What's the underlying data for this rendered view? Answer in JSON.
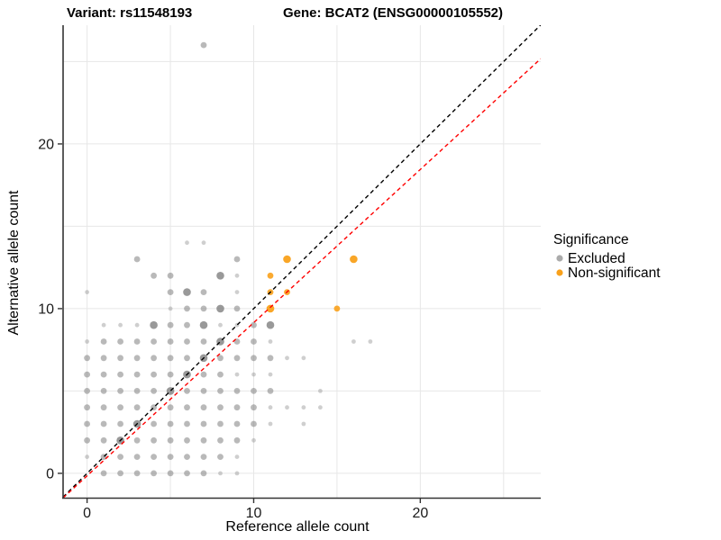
{
  "titles": {
    "variant": "Variant: rs11548193",
    "gene": "Gene: BCAT2 (ENSG00000105552)"
  },
  "axes": {
    "x": {
      "label": "Reference allele count",
      "ticks": [
        0,
        10,
        20
      ],
      "domain": [
        -1.44,
        27.23
      ],
      "gridlines": [
        0,
        5,
        10,
        15,
        20,
        25
      ]
    },
    "y": {
      "label": "Alternative allele count",
      "ticks": [
        0,
        10,
        20
      ],
      "domain": [
        -1.48,
        27.1
      ],
      "gridlines": [
        0,
        5,
        10,
        15,
        20,
        25
      ]
    }
  },
  "legend": {
    "title": "Significance",
    "items": [
      {
        "label": "Excluded",
        "color": "#ABABAB"
      },
      {
        "label": "Non-significant",
        "color": "#F9A11B"
      }
    ]
  },
  "colors": {
    "excluded_point": "#808080",
    "nonsignificant_point": "#F9A11B",
    "identity_line": "#000000",
    "fit_line": "#FF0000",
    "grid": "#E7E7E7",
    "axis_line": "#333333",
    "tick": "#333333"
  },
  "chart_data": {
    "type": "scatter",
    "xlabel": "Reference allele count",
    "ylabel": "Alternative allele count",
    "xlim": [
      -1.44,
      27.23
    ],
    "ylim": [
      -1.48,
      27.1
    ],
    "grid": "on",
    "legend_position": "right",
    "point_note": "points are [x, y, size_class]; size_class 0=small/faint 1=normal 2=large/dark",
    "series": [
      {
        "name": "Excluded",
        "color": "#808080",
        "points": [
          [
            1,
            0,
            1
          ],
          [
            2,
            0,
            1
          ],
          [
            3,
            0,
            1
          ],
          [
            4,
            0,
            1
          ],
          [
            5,
            0,
            1
          ],
          [
            6,
            0,
            1
          ],
          [
            7,
            0,
            1
          ],
          [
            8,
            0,
            0
          ],
          [
            9,
            0,
            0
          ],
          [
            0,
            1,
            0
          ],
          [
            1,
            1,
            1
          ],
          [
            2,
            1,
            1
          ],
          [
            3,
            1,
            1
          ],
          [
            4,
            1,
            1
          ],
          [
            5,
            1,
            1
          ],
          [
            6,
            1,
            1
          ],
          [
            7,
            1,
            1
          ],
          [
            8,
            1,
            1
          ],
          [
            9,
            1,
            0
          ],
          [
            0,
            2,
            1
          ],
          [
            1,
            2,
            1
          ],
          [
            2,
            2,
            2
          ],
          [
            3,
            2,
            1
          ],
          [
            4,
            2,
            1
          ],
          [
            5,
            2,
            1
          ],
          [
            6,
            2,
            1
          ],
          [
            7,
            2,
            1
          ],
          [
            8,
            2,
            1
          ],
          [
            9,
            2,
            1
          ],
          [
            10,
            2,
            0
          ],
          [
            0,
            3,
            1
          ],
          [
            1,
            3,
            1
          ],
          [
            2,
            3,
            1
          ],
          [
            3,
            3,
            2
          ],
          [
            4,
            3,
            1
          ],
          [
            5,
            3,
            1
          ],
          [
            6,
            3,
            1
          ],
          [
            7,
            3,
            1
          ],
          [
            8,
            3,
            1
          ],
          [
            9,
            3,
            1
          ],
          [
            10,
            3,
            1
          ],
          [
            11,
            3,
            0
          ],
          [
            13,
            3,
            0
          ],
          [
            0,
            4,
            1
          ],
          [
            1,
            4,
            1
          ],
          [
            2,
            4,
            1
          ],
          [
            3,
            4,
            1
          ],
          [
            4,
            4,
            1
          ],
          [
            5,
            4,
            1
          ],
          [
            6,
            4,
            1
          ],
          [
            7,
            4,
            1
          ],
          [
            8,
            4,
            1
          ],
          [
            9,
            4,
            1
          ],
          [
            10,
            4,
            1
          ],
          [
            11,
            4,
            0
          ],
          [
            12,
            4,
            0
          ],
          [
            13,
            4,
            0
          ],
          [
            14,
            4,
            0
          ],
          [
            0,
            5,
            1
          ],
          [
            1,
            5,
            1
          ],
          [
            2,
            5,
            1
          ],
          [
            3,
            5,
            1
          ],
          [
            4,
            5,
            1
          ],
          [
            5,
            5,
            2
          ],
          [
            6,
            5,
            1
          ],
          [
            7,
            5,
            1
          ],
          [
            8,
            5,
            1
          ],
          [
            9,
            5,
            1
          ],
          [
            10,
            5,
            1
          ],
          [
            11,
            5,
            1
          ],
          [
            14,
            5,
            0
          ],
          [
            0,
            6,
            1
          ],
          [
            1,
            6,
            1
          ],
          [
            2,
            6,
            1
          ],
          [
            3,
            6,
            1
          ],
          [
            4,
            6,
            1
          ],
          [
            5,
            6,
            1
          ],
          [
            6,
            6,
            2
          ],
          [
            7,
            6,
            1
          ],
          [
            8,
            6,
            1
          ],
          [
            9,
            6,
            0
          ],
          [
            10,
            6,
            0
          ],
          [
            11,
            6,
            0
          ],
          [
            0,
            7,
            1
          ],
          [
            1,
            7,
            1
          ],
          [
            2,
            7,
            1
          ],
          [
            3,
            7,
            1
          ],
          [
            4,
            7,
            1
          ],
          [
            5,
            7,
            1
          ],
          [
            6,
            7,
            1
          ],
          [
            7,
            7,
            2
          ],
          [
            8,
            7,
            1
          ],
          [
            9,
            7,
            1
          ],
          [
            10,
            7,
            1
          ],
          [
            11,
            7,
            1
          ],
          [
            12,
            7,
            0
          ],
          [
            13,
            7,
            0
          ],
          [
            0,
            8,
            0
          ],
          [
            1,
            8,
            1
          ],
          [
            2,
            8,
            1
          ],
          [
            3,
            8,
            1
          ],
          [
            4,
            8,
            1
          ],
          [
            5,
            8,
            1
          ],
          [
            6,
            8,
            1
          ],
          [
            7,
            8,
            1
          ],
          [
            8,
            8,
            2
          ],
          [
            9,
            8,
            1
          ],
          [
            10,
            8,
            1
          ],
          [
            11,
            8,
            0
          ],
          [
            16,
            8,
            0
          ],
          [
            17,
            8,
            0
          ],
          [
            1,
            9,
            0
          ],
          [
            2,
            9,
            0
          ],
          [
            3,
            9,
            0
          ],
          [
            4,
            9,
            2
          ],
          [
            5,
            9,
            1
          ],
          [
            6,
            9,
            1
          ],
          [
            7,
            9,
            2
          ],
          [
            8,
            9,
            0
          ],
          [
            9,
            9,
            0
          ],
          [
            10,
            9,
            1
          ],
          [
            11,
            9,
            2
          ],
          [
            5,
            10,
            0
          ],
          [
            6,
            10,
            1
          ],
          [
            7,
            10,
            1
          ],
          [
            8,
            10,
            2
          ],
          [
            9,
            10,
            1
          ],
          [
            0,
            11,
            0
          ],
          [
            5,
            11,
            1
          ],
          [
            6,
            11,
            2
          ],
          [
            7,
            11,
            1
          ],
          [
            9,
            11,
            0
          ],
          [
            4,
            12,
            1
          ],
          [
            5,
            12,
            1
          ],
          [
            8,
            12,
            2
          ],
          [
            9,
            12,
            0
          ],
          [
            3,
            13,
            1
          ],
          [
            9,
            13,
            1
          ],
          [
            6,
            14,
            0
          ],
          [
            7,
            14,
            0
          ],
          [
            7,
            26,
            1
          ]
        ]
      },
      {
        "name": "Non-significant",
        "color": "#F9A11B",
        "points": [
          [
            11,
            10,
            2
          ],
          [
            11,
            11,
            1
          ],
          [
            12,
            11,
            1
          ],
          [
            11,
            12,
            1
          ],
          [
            12,
            13,
            2
          ],
          [
            15,
            10,
            1
          ],
          [
            16,
            13,
            2
          ]
        ]
      }
    ],
    "lines": [
      {
        "name": "identity",
        "slope": 1.0,
        "intercept": 0,
        "color": "#000000",
        "dashed": true
      },
      {
        "name": "fit",
        "slope": 0.93,
        "intercept": -0.15,
        "color": "#FF0000",
        "dashed": true
      }
    ]
  }
}
